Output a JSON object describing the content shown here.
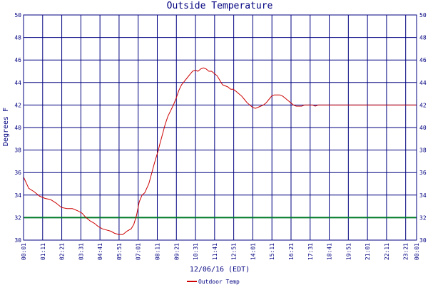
{
  "chart_data": {
    "type": "line",
    "title": "Outside Temperature",
    "ylabel": "Degrees F",
    "xlabel": "12/06/16 (EDT)",
    "ylim": [
      30,
      50
    ],
    "yticks": [
      30,
      32,
      34,
      36,
      38,
      40,
      42,
      44,
      46,
      48,
      50
    ],
    "xtick_labels": [
      "00:01",
      "01:11",
      "02:21",
      "03:31",
      "04:41",
      "05:51",
      "07:01",
      "08:11",
      "09:21",
      "10:31",
      "11:41",
      "12:51",
      "14:01",
      "15:11",
      "16:21",
      "17:31",
      "18:41",
      "19:51",
      "21:01",
      "22:11",
      "23:21",
      "00:01"
    ],
    "freezing_line": {
      "value": 32,
      "color": "#007a2a"
    },
    "grid": true,
    "legend_position": "bottom-center",
    "series": [
      {
        "name": "Outdoor Temp",
        "color": "#cc0000",
        "x_minutes": [
          1,
          20,
          40,
          60,
          80,
          100,
          120,
          140,
          160,
          180,
          200,
          215,
          230,
          245,
          260,
          275,
          290,
          305,
          320,
          335,
          350,
          365,
          380,
          395,
          405,
          415,
          425,
          435,
          445,
          460,
          470,
          480,
          490,
          495,
          500,
          510,
          520,
          530,
          540,
          550,
          560,
          570,
          580,
          590,
          600,
          610,
          620,
          630,
          640,
          650,
          660,
          670,
          680,
          690,
          700,
          710,
          720,
          730,
          740,
          750,
          760,
          770,
          780,
          790,
          800,
          810,
          820,
          830,
          840,
          850,
          860,
          870,
          880,
          890,
          900,
          910,
          920,
          930,
          940,
          950,
          960,
          970,
          980,
          990,
          1000,
          1010,
          1020,
          1030,
          1040,
          1050,
          1060,
          1070,
          1080,
          1090,
          1100,
          1110,
          1120,
          1130,
          1140,
          1150,
          1160,
          1170,
          1180,
          1190,
          1200,
          1210,
          1220,
          1230,
          1240,
          1250,
          1260,
          1270,
          1280,
          1290,
          1300,
          1310,
          1320,
          1330,
          1340,
          1350,
          1360,
          1370,
          1380,
          1390,
          1400,
          1410,
          1420,
          1430,
          1440
        ],
        "values": [
          35.6,
          34.6,
          34.3,
          33.9,
          33.7,
          33.6,
          33.3,
          32.9,
          32.8,
          32.8,
          32.6,
          32.4,
          32.0,
          31.7,
          31.5,
          31.2,
          31.0,
          30.9,
          30.8,
          30.6,
          30.5,
          30.5,
          30.8,
          31.0,
          31.4,
          32.2,
          33.4,
          34.0,
          34.2,
          35.0,
          35.9,
          36.8,
          37.6,
          38.0,
          38.5,
          39.4,
          40.3,
          41.0,
          41.5,
          42.0,
          42.6,
          43.3,
          43.8,
          44.1,
          44.4,
          44.7,
          45.0,
          45.1,
          45.0,
          45.2,
          45.3,
          45.2,
          45.0,
          45.0,
          44.8,
          44.6,
          44.2,
          43.8,
          43.7,
          43.6,
          43.4,
          43.4,
          43.2,
          43.0,
          42.8,
          42.5,
          42.2,
          42.0,
          41.8,
          41.7,
          41.8,
          41.9,
          42.0,
          42.2,
          42.5,
          42.8,
          42.9,
          42.9,
          42.9,
          42.8,
          42.6,
          42.4,
          42.2,
          42.0,
          41.9,
          41.9,
          41.9,
          42.0,
          42.0,
          42.0,
          42.0,
          41.9,
          42.0,
          42.0,
          42.0,
          42.0,
          42.0,
          42.0,
          42.0,
          42.0,
          42.0,
          42.0,
          42.0,
          42.0,
          42.0,
          42.0,
          42.0,
          42.0,
          42.0,
          42.0,
          42.0,
          42.0,
          42.0,
          42.0,
          42.0,
          42.0,
          42.0,
          42.0,
          42.0,
          42.0,
          42.0,
          42.0,
          42.0,
          42.0,
          42.0,
          42.0,
          42.0,
          42.0,
          42.0
        ]
      }
    ]
  }
}
